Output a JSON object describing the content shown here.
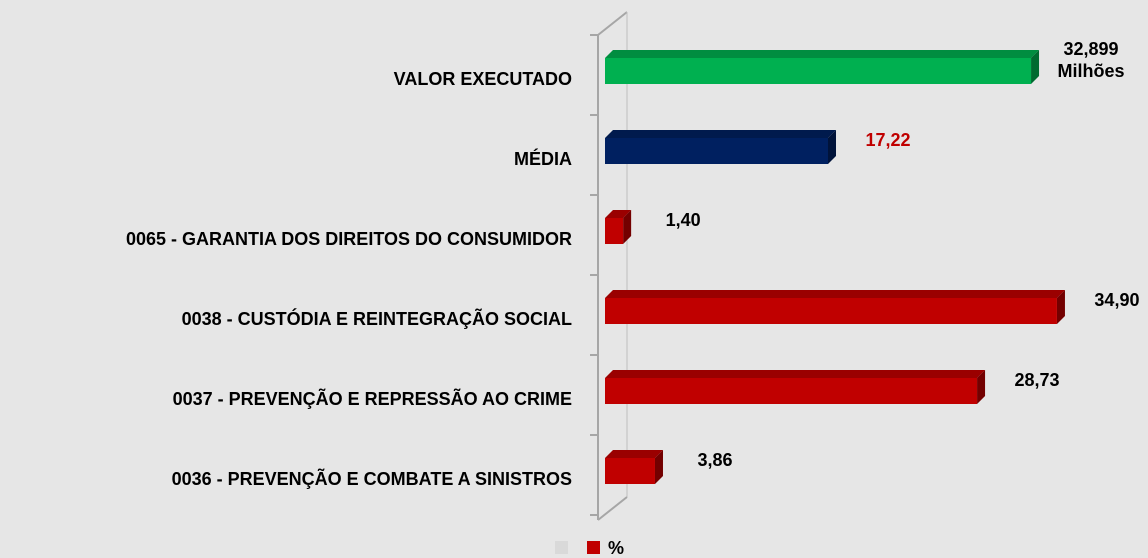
{
  "chart_data": {
    "type": "bar3d_horizontal",
    "categories": [
      "VALOR EXECUTADO",
      "MÉDIA",
      "0065 - GARANTIA DOS DIREITOS DO CONSUMIDOR",
      "0038 - CUSTÓDIA E REINTEGRAÇÃO SOCIAL",
      "0037 - PREVENÇÃO E REPRESSÃO AO CRIME",
      "0036 - PREVENÇÃO E COMBATE A SINISTROS"
    ],
    "values": [
      32.899,
      17.22,
      1.4,
      34.9,
      28.73,
      3.86
    ],
    "value_labels": [
      "32,899 Milhões",
      "17,22",
      "1,40",
      "34,90",
      "28,73",
      "3,86"
    ],
    "colors": [
      "#00b050",
      "#002060",
      "#c00000",
      "#c00000",
      "#c00000",
      "#c00000"
    ],
    "value_label_colors": [
      "#000000",
      "#c00000",
      "#000000",
      "#000000",
      "#000000",
      "#000000"
    ],
    "xlim": [
      0,
      40
    ],
    "legend": {
      "label": "%",
      "color": "#c00000"
    }
  }
}
